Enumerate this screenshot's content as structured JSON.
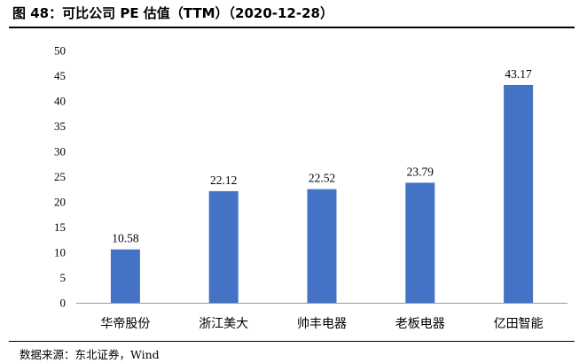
{
  "title": "图 48：可比公司 PE 估值（TTM）（2020-12-28）",
  "source": "数据来源：东北证券，Wind",
  "colors": {
    "bar": "#4472C4",
    "axis": "#9a9a9a"
  },
  "chart_data": {
    "type": "bar",
    "title": "",
    "xlabel": "",
    "ylabel": "",
    "ylim": [
      0,
      50
    ],
    "yticks": [
      "0",
      "5",
      "10",
      "15",
      "20",
      "25",
      "30",
      "35",
      "40",
      "45",
      "50"
    ],
    "categories": [
      "华帝股份",
      "浙江美大",
      "帅丰电器",
      "老板电器",
      "亿田智能"
    ],
    "values": [
      10.58,
      22.12,
      22.52,
      23.79,
      43.17
    ],
    "value_labels": [
      "10.58",
      "22.12",
      "22.52",
      "23.79",
      "43.17"
    ],
    "grid": false,
    "legend": "none"
  }
}
